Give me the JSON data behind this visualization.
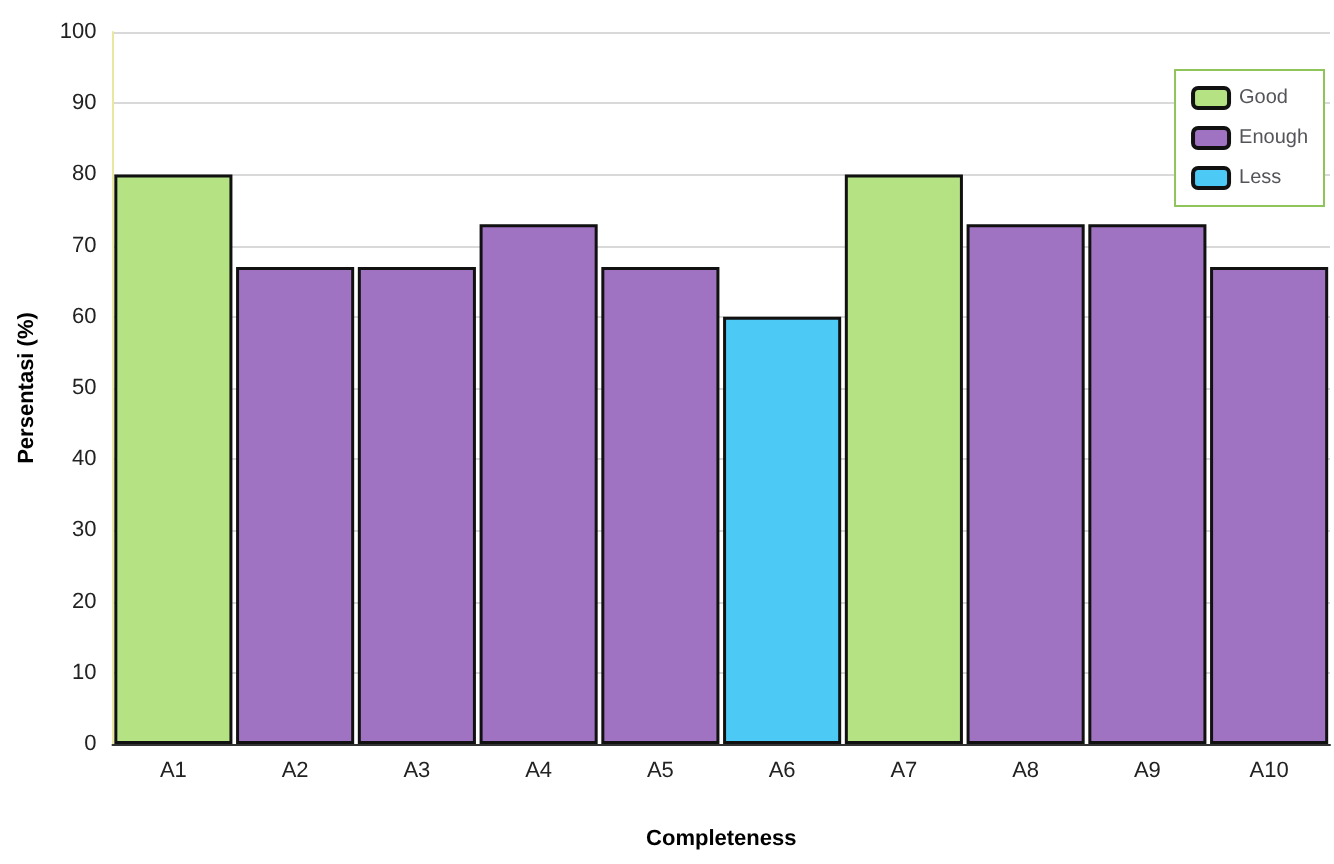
{
  "chart_data": {
    "type": "bar",
    "xlabel": "Completeness",
    "ylabel": "Persentasi (%)",
    "categories": [
      "A1",
      "A2",
      "A3",
      "A4",
      "A5",
      "A6",
      "A7",
      "A8",
      "A9",
      "A10"
    ],
    "series": [
      {
        "name": "Good",
        "color": "#b5e384",
        "values": [
          80,
          null,
          null,
          null,
          null,
          null,
          80,
          null,
          null,
          null
        ]
      },
      {
        "name": "Enough",
        "color": "#a072c2",
        "values": [
          null,
          67,
          67,
          73,
          67,
          null,
          null,
          73,
          73,
          67
        ]
      },
      {
        "name": "Less",
        "color": "#4ccaf5",
        "values": [
          null,
          null,
          null,
          null,
          null,
          60,
          null,
          null,
          null,
          null
        ]
      }
    ],
    "stacked": true,
    "ylim": [
      0,
      100
    ],
    "yticks": [
      0,
      10,
      20,
      30,
      40,
      50,
      60,
      70,
      80,
      90,
      100
    ],
    "grid": "y",
    "legend": "top right"
  }
}
